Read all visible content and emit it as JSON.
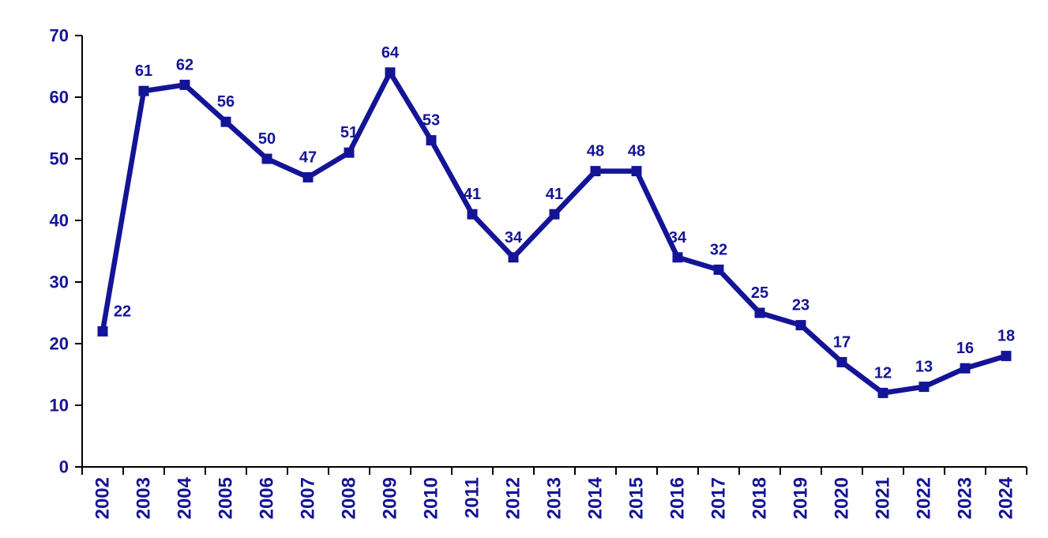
{
  "chart_data": {
    "type": "line",
    "title": "",
    "xlabel": "",
    "ylabel": "",
    "categories": [
      "2002",
      "2003",
      "2004",
      "2005",
      "2006",
      "2007",
      "2008",
      "2009",
      "2010",
      "2011",
      "2012",
      "2013",
      "2014",
      "2015",
      "2016",
      "2017",
      "2018",
      "2019",
      "2020",
      "2021",
      "2022",
      "2023",
      "2024"
    ],
    "series": [
      {
        "name": "value",
        "values": [
          22,
          61,
          62,
          56,
          50,
          47,
          51,
          64,
          53,
          41,
          34,
          41,
          48,
          48,
          34,
          32,
          25,
          23,
          17,
          12,
          13,
          16,
          18
        ],
        "marker": "square"
      }
    ],
    "data_labels": true,
    "ylim": [
      0,
      70
    ],
    "yticks": [
      0,
      10,
      20,
      30,
      40,
      50,
      60,
      70
    ],
    "grid": false,
    "legend_position": "none"
  },
  "colors": {
    "series": "#141496",
    "data_label_text": "#141496",
    "axis_tick_text": "#141496",
    "axis_line": "#000000",
    "background": "#FFFFFF"
  }
}
